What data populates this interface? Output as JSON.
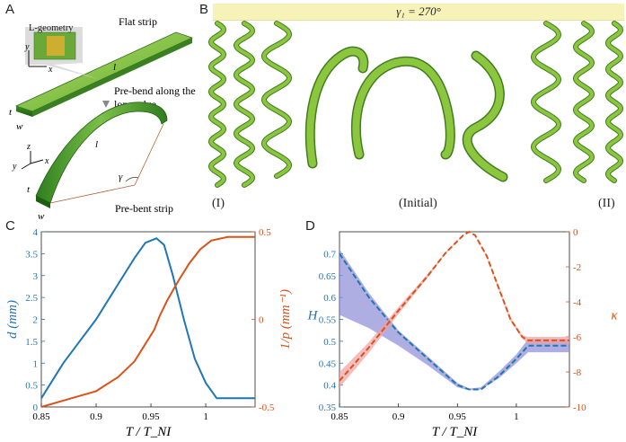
{
  "figure": {
    "panel_a": {
      "label": "A",
      "flat_strip": "Flat strip",
      "l_geometry": "L-geometry",
      "pre_bend_line1": "Pre-bend along the",
      "pre_bend_line2": "long edge",
      "pre_bent_strip": "Pre-bent strip",
      "dim_t": "t",
      "dim_w": "w",
      "dim_l": "l",
      "angle": "γ",
      "axis_x": "x",
      "axis_y": "y",
      "axis_z": "z"
    },
    "panel_b": {
      "label": "B",
      "angle_banner": "γ₁ = 270°",
      "label_left": "(I)",
      "label_center": "(Initial)",
      "label_right": "(II)",
      "strip_color": "#8cc63f"
    },
    "panel_c": {
      "label": "C"
    },
    "panel_d": {
      "label": "D"
    }
  },
  "chart_data": [
    {
      "type": "line",
      "panel": "C",
      "xlabel": "T / T_NI",
      "ylabel_left": "d (mm)",
      "ylabel_right": "1/p (mm⁻¹)",
      "xlim": [
        0.85,
        1.045
      ],
      "ylim_left": [
        0,
        4
      ],
      "ylim_right": [
        -0.5,
        0.5
      ],
      "xticks": [
        "0.85",
        "0.9",
        "0.95",
        "1"
      ],
      "yticks_left": [
        "0",
        "0.5",
        "1",
        "1.5",
        "2",
        "2.5",
        "3",
        "3.5",
        "4"
      ],
      "yticks_right": [
        "-0.5",
        "0",
        "0.5"
      ],
      "colors": {
        "left": "#1f77b4",
        "right": "#d95319"
      },
      "series": [
        {
          "name": "d",
          "axis": "left",
          "x": [
            0.85,
            0.87,
            0.9,
            0.92,
            0.935,
            0.945,
            0.955,
            0.962,
            0.97,
            0.98,
            0.99,
            1.0,
            1.01,
            1.045
          ],
          "values": [
            0.2,
            1.0,
            2.0,
            2.8,
            3.4,
            3.75,
            3.85,
            3.7,
            3.0,
            2.0,
            1.1,
            0.55,
            0.2,
            0.2
          ]
        },
        {
          "name": "1/p",
          "axis": "right",
          "x": [
            0.85,
            0.875,
            0.9,
            0.92,
            0.935,
            0.945,
            0.953,
            0.958,
            0.965,
            0.975,
            0.985,
            0.995,
            1.005,
            1.02,
            1.045
          ],
          "values": [
            -0.5,
            -0.455,
            -0.41,
            -0.33,
            -0.24,
            -0.14,
            -0.06,
            0.02,
            0.11,
            0.22,
            0.32,
            0.4,
            0.45,
            0.47,
            0.47
          ]
        }
      ]
    },
    {
      "type": "line",
      "panel": "D",
      "xlabel": "T / T_NI",
      "ylabel_left": "H",
      "ylabel_right": "κ",
      "xlim": [
        0.85,
        1.045
      ],
      "ylim_left": [
        0.35,
        0.75
      ],
      "ylim_right": [
        -10,
        0
      ],
      "xticks": [
        "0.85",
        "0.9",
        "0.95",
        "1"
      ],
      "yticks_left": [
        "0.35",
        "0.4",
        "0.45",
        "0.5",
        "0.55",
        "0.6",
        "0.65",
        "0.7"
      ],
      "yticks_right": [
        "-10",
        "-8",
        "-6",
        "-4",
        "-2",
        "0"
      ],
      "colors": {
        "left": "#1f77b4",
        "right": "#d95319",
        "band_left": "#8c8cd6",
        "band_right": "#f0a0a0"
      },
      "series": [
        {
          "name": "H mean",
          "axis": "left",
          "x": [
            0.85,
            0.875,
            0.9,
            0.925,
            0.95,
            0.96,
            0.97,
            0.985,
            1.0,
            1.01,
            1.045
          ],
          "values": [
            0.7,
            0.6,
            0.52,
            0.46,
            0.4,
            0.39,
            0.39,
            0.42,
            0.46,
            0.49,
            0.49
          ],
          "band_low": [
            0.56,
            0.53,
            0.49,
            0.445,
            0.395,
            0.388,
            0.39,
            0.415,
            0.45,
            0.475,
            0.475
          ],
          "band_high": [
            0.71,
            0.61,
            0.525,
            0.465,
            0.405,
            0.392,
            0.395,
            0.43,
            0.47,
            0.505,
            0.505
          ]
        },
        {
          "name": "κ mean",
          "axis": "right",
          "x": [
            0.85,
            0.875,
            0.9,
            0.925,
            0.94,
            0.955,
            0.96,
            0.965,
            0.975,
            0.985,
            0.995,
            1.005,
            1.01,
            1.045
          ],
          "values": [
            -8.5,
            -6.6,
            -4.5,
            -2.5,
            -1.2,
            -0.2,
            0.0,
            -0.2,
            -1.4,
            -3.2,
            -5.0,
            -6.0,
            -6.2,
            -6.2
          ],
          "band_low": [
            -8.9,
            -6.9,
            -4.7,
            -2.6,
            -1.25,
            -0.22,
            0.0,
            -0.22,
            -1.45,
            -3.3,
            -5.1,
            -6.1,
            -6.4,
            -6.4
          ],
          "band_high": [
            -8.0,
            -6.3,
            -4.3,
            -2.4,
            -1.15,
            -0.18,
            0.0,
            -0.18,
            -1.35,
            -3.1,
            -4.9,
            -5.9,
            -6.0,
            -6.0
          ]
        }
      ]
    }
  ]
}
